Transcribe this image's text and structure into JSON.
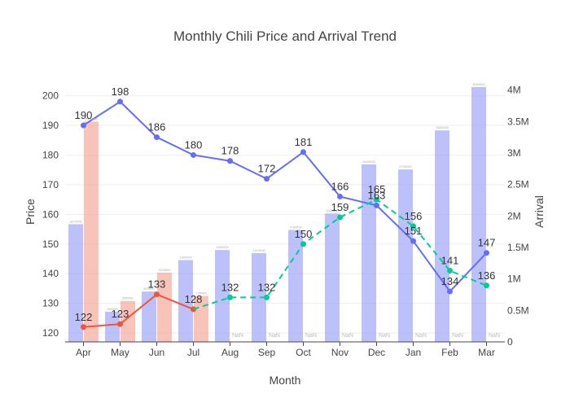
{
  "chart_data": {
    "type": "bar",
    "title": "Monthly Chili Price and Arrival Trend",
    "xlabel": "Month",
    "ylabel": "Price",
    "y2label": "Arrival",
    "categories": [
      "Apr",
      "May",
      "Jun",
      "Jul",
      "Aug",
      "Sep",
      "Oct",
      "Nov",
      "Dec",
      "Jan",
      "Feb",
      "Mar"
    ],
    "ylim": [
      117,
      204
    ],
    "y2lim": [
      0,
      4.1
    ],
    "y_ticks": [
      120,
      130,
      140,
      150,
      160,
      170,
      180,
      190,
      200
    ],
    "y2_ticks": [
      {
        "value": 0,
        "label": "0"
      },
      {
        "value": 0.5,
        "label": "0.5M"
      },
      {
        "value": 1,
        "label": "1M"
      },
      {
        "value": 1.5,
        "label": "1.5M"
      },
      {
        "value": 2,
        "label": "2M"
      },
      {
        "value": 2.5,
        "label": "2.5M"
      },
      {
        "value": 3,
        "label": "3M"
      },
      {
        "value": 3.5,
        "label": "3.5M"
      },
      {
        "value": 4,
        "label": "4M"
      }
    ],
    "grid": true,
    "legend": "none",
    "colors": {
      "bar_blue": "#9aa0f7",
      "bar_red": "#f4a393",
      "line_blue": "#636efa",
      "line_red": "#ef553b",
      "line_green": "#00cc96"
    },
    "series": [
      {
        "kind": "bar",
        "axis": "y2",
        "color_key": "bar_blue",
        "offset": -1,
        "values": [
          1.87,
          0.48,
          0.8,
          1.3,
          1.46,
          1.41,
          1.78,
          2.04,
          2.82,
          2.74,
          3.36,
          4.05
        ],
        "value_labels": [
          "1870000",
          "480000",
          "800000",
          "1300000",
          "1460000",
          "1410000",
          "1780000",
          "2040000",
          "2820000",
          "2740000",
          "3360000",
          "4050000"
        ]
      },
      {
        "kind": "bar",
        "axis": "y2",
        "color_key": "bar_red",
        "offset": 1,
        "values": [
          3.5,
          0.65,
          1.1,
          0.73,
          null,
          null,
          null,
          null,
          null,
          null,
          null,
          null
        ],
        "value_labels": [
          "3500000",
          "650000",
          "1100000",
          "730000",
          "NaN",
          "NaN",
          "NaN",
          "NaN",
          "NaN",
          "NaN",
          "NaN",
          "NaN"
        ]
      },
      {
        "kind": "line",
        "axis": "y",
        "color_key": "line_blue",
        "dash": false,
        "values": [
          190,
          198,
          186,
          180,
          178,
          172,
          181,
          166,
          163,
          151,
          134,
          147
        ],
        "value_labels": [
          "190",
          "198",
          "186",
          "180",
          "178",
          "172",
          "181",
          "166",
          "163",
          "151",
          "134",
          "147"
        ]
      },
      {
        "kind": "line",
        "axis": "y",
        "color_key": "line_red",
        "dash": false,
        "values": [
          122,
          123,
          133,
          128,
          null,
          null,
          null,
          null,
          null,
          null,
          null,
          null
        ],
        "value_labels": [
          "122",
          "123",
          "133",
          "128",
          "",
          "",
          "",
          "",
          "",
          "",
          "",
          ""
        ]
      },
      {
        "kind": "line",
        "axis": "y",
        "color_key": "line_green",
        "dash": true,
        "values": [
          null,
          null,
          null,
          128,
          132,
          132,
          150,
          159,
          165,
          156,
          141,
          136
        ],
        "value_labels": [
          "",
          "",
          "",
          "",
          "132",
          "132",
          "150",
          "159",
          "165",
          "156",
          "141",
          "136"
        ]
      }
    ]
  }
}
